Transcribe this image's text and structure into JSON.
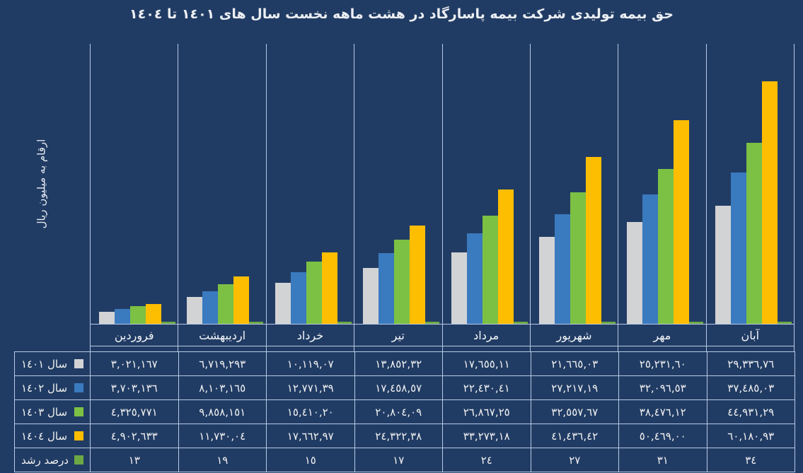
{
  "title": "حق بیمه تولیدی شرکت بیمه پاسارگاد در هشت ماهه نخست سال های ١٤٠١ تا ١٤٠٤",
  "y_axis_label": "ارقام به میلیون ریال",
  "colors": {
    "background": "#213C64",
    "grid_line": "#B9C9E5",
    "text": "#F2F2F2",
    "year_1401": "#D2D3D5",
    "year_1402": "#3A7ABF",
    "year_1403": "#7CC143",
    "year_1404": "#FDBD00",
    "growth": "#6DA845"
  },
  "chart_data": {
    "type": "bar",
    "title": "حق بیمه تولیدی شرکت بیمه پاسارگاد در هشت ماهه نخست سال های ١٤٠١ تا ١٤٠٤",
    "xlabel": "",
    "ylabel": "ارقام به میلیون ریال",
    "ylim": [
      0,
      69000000
    ],
    "grid": "vertical-separators-only",
    "legend_position": "table-left-column",
    "categories": [
      "فروردین",
      "اردیبهشت",
      "خرداد",
      "تیر",
      "مرداد",
      "شهریور",
      "مهر",
      "آبان"
    ],
    "series": [
      {
        "name": "سال ١٤٠١",
        "render": "bar",
        "color": "#D2D3D5",
        "values": [
          3021167,
          6719293,
          10119070,
          13852320,
          17655110,
          21665030,
          25231600,
          29336760
        ],
        "display_values": [
          "٣,٠٢١,١٦٧",
          "٦,٧١٩,٢٩٣",
          "١٠,١١٩,٠٧",
          "١٣,٨٥٢,٣٢",
          "١٧,٦٥٥,١١",
          "٢١,٦٦٥,٠٣",
          "٢٥,٢٣١,٦٠",
          "٢٩,٣٣٦,٧٦"
        ]
      },
      {
        "name": "سال ١٤٠٢",
        "render": "bar",
        "color": "#3A7ABF",
        "values": [
          3703136,
          8103165,
          12771390,
          17458570,
          22430410,
          27217190,
          32096530,
          37485030
        ],
        "display_values": [
          "٣,٧٠٣,١٣٦",
          "٨,١٠٣,١٦٥",
          "١٢,٧٧١,٣٩",
          "١٧,٤٥٨,٥٧",
          "٢٢,٤٣٠,٤١",
          "٢٧,٢١٧,١٩",
          "٣٢,٠٩٦,٥٣",
          "٣٧,٤٨٥,٠٣"
        ]
      },
      {
        "name": "سال ١٤٠٣",
        "render": "bar",
        "color": "#7CC143",
        "values": [
          4325771,
          9858151,
          15410200,
          20804090,
          26867250,
          32557670,
          38476120,
          44931290
        ],
        "display_values": [
          "٤,٣٢٥,٧٧١",
          "٩,٨٥٨,١٥١",
          "١٥,٤١٠,٢٠",
          "٢٠,٨٠٤,٠٩",
          "٢٦,٨٦٧,٢٥",
          "٣٢,٥٥٧,٦٧",
          "٣٨,٤٧٦,١٢",
          "٤٤,٩٣١,٢٩"
        ]
      },
      {
        "name": "سال ١٤٠٤",
        "render": "bar",
        "color": "#FDBD00",
        "values": [
          4902633,
          11730040,
          17662970,
          24322380,
          33273180,
          41436420,
          50469000,
          60180930
        ],
        "display_values": [
          "٤,٩٠٢,٦٣٣",
          "١١,٧٣٠,٠٤",
          "١٧,٦٦٢,٩٧",
          "٢٤,٣٢٢,٣٨",
          "٣٣,٢٧٣,١٨",
          "٤١,٤٣٦,٤٢",
          "٥٠,٤٦٩,٠٠",
          "٦٠,١٨٠,٩٣"
        ]
      },
      {
        "name": "درصد رشد",
        "render": "line",
        "color": "#6DA845",
        "values": [
          13,
          19,
          15,
          17,
          24,
          27,
          31,
          34
        ],
        "display_values": [
          "١٣",
          "١٩",
          "١٥",
          "١٧",
          "٢٤",
          "٢٧",
          "٣١",
          "٣٤"
        ]
      }
    ]
  }
}
